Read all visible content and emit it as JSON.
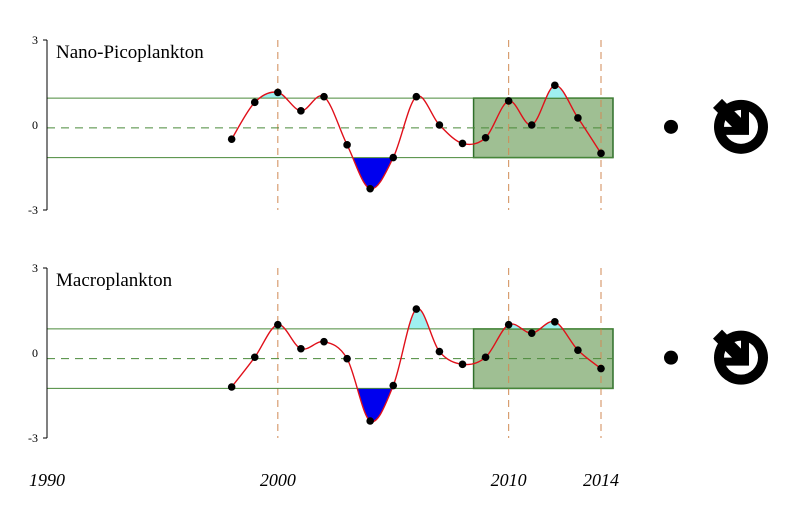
{
  "chart_data": [
    {
      "type": "line",
      "title": "Nano-Picoplankton",
      "x": [
        1998,
        1999,
        2000,
        2001,
        2002,
        2003,
        2004,
        2005,
        2006,
        2007,
        2008,
        2009,
        2010,
        2011,
        2012,
        2013,
        2014
      ],
      "values": [
        -0.5,
        0.8,
        1.15,
        0.5,
        1.0,
        -0.7,
        -2.25,
        -1.15,
        1.0,
        0.0,
        -0.65,
        -0.45,
        0.85,
        0.0,
        1.4,
        0.25,
        -1.0
      ],
      "mean": -0.1,
      "upper": 0.95,
      "lower": -1.15,
      "yticks": [
        "3",
        "0",
        "-3"
      ],
      "ylim": [
        -3,
        3
      ],
      "status_marker": "circle-dot",
      "trend_icon": "arrow-down-right-icon"
    },
    {
      "type": "line",
      "title": "Macroplankton",
      "x": [
        1998,
        1999,
        2000,
        2001,
        2002,
        2003,
        2004,
        2005,
        2006,
        2007,
        2008,
        2009,
        2010,
        2011,
        2012,
        2013,
        2014
      ],
      "values": [
        -1.2,
        -0.15,
        1.0,
        0.15,
        0.4,
        -0.2,
        -2.4,
        -1.15,
        1.55,
        0.05,
        -0.4,
        -0.15,
        1.0,
        0.7,
        1.1,
        0.1,
        -0.55
      ],
      "mean": -0.2,
      "upper": 0.85,
      "lower": -1.25,
      "yticks": [
        "3",
        "0",
        "-3"
      ],
      "ylim": [
        -3,
        3
      ],
      "status_marker": "circle-dot",
      "trend_icon": "arrow-down-right-icon"
    }
  ],
  "x_axis": {
    "labels": [
      "1990",
      "2000",
      "2010",
      "2014"
    ],
    "label_years": [
      1990,
      2000,
      2010,
      2014
    ],
    "xlim": [
      1990,
      2014
    ]
  },
  "colors": {
    "line": "#e0101a",
    "point": "#000000",
    "band_line": "#4a8a3a",
    "mean_line": "#4a8a3a",
    "recent_fill": "#9fbf93",
    "recent_edge": "#2f6f2a",
    "above_fill": "#9ff0f0",
    "below_fill": "#0000ee",
    "year_guide": "#d08a55"
  },
  "recent_window": [
    2009,
    2014
  ]
}
